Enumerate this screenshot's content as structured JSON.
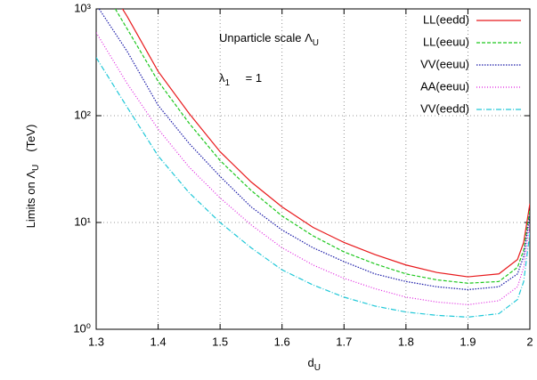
{
  "chart_data": {
    "type": "line",
    "xlabel": {
      "text": "d",
      "sub": "U"
    },
    "ylabel": {
      "text": "Limits on Λ",
      "sub": "U",
      "after": "(TeV)"
    },
    "annotations": [
      {
        "text": "Unparticle scale Λ",
        "sub": "U"
      },
      {
        "text": "λ",
        "sub": "1",
        "after": " = 1"
      }
    ],
    "x": [
      1.3,
      1.35,
      1.4,
      1.45,
      1.5,
      1.55,
      1.6,
      1.65,
      1.7,
      1.75,
      1.8,
      1.85,
      1.9,
      1.95,
      1.98,
      1.99,
      2.0
    ],
    "series": [
      {
        "name": "LL(eedd)",
        "color": "#e8191c",
        "dash": "none",
        "values": [
          2500,
          850,
          260,
          105,
          46,
          24,
          14,
          9,
          6.5,
          5,
          4.0,
          3.4,
          3.1,
          3.3,
          4.5,
          6.5,
          15
        ]
      },
      {
        "name": "LL(eeuu)",
        "color": "#1ec81e",
        "dash": "4,2",
        "values": [
          2000,
          650,
          210,
          85,
          38,
          20,
          11.5,
          7.5,
          5.3,
          4.1,
          3.3,
          2.9,
          2.7,
          2.8,
          3.8,
          5.5,
          13
        ]
      },
      {
        "name": "VV(eeuu)",
        "color": "#1a1aa8",
        "dash": "1.5,1.5",
        "values": [
          1100,
          400,
          125,
          55,
          27,
          14,
          8.5,
          5.8,
          4.3,
          3.3,
          2.8,
          2.5,
          2.35,
          2.5,
          3.3,
          4.8,
          12
        ]
      },
      {
        "name": "AA(eeuu)",
        "color": "#e020e0",
        "dash": "1,2",
        "values": [
          600,
          200,
          75,
          33,
          17,
          9.5,
          5.8,
          4,
          3,
          2.4,
          2.0,
          1.8,
          1.7,
          1.85,
          2.5,
          3.8,
          10
        ]
      },
      {
        "name": "VV(eedd)",
        "color": "#20c8d8",
        "dash": "6,2,1,2",
        "values": [
          350,
          120,
          42,
          19,
          10,
          5.8,
          3.6,
          2.6,
          2.0,
          1.65,
          1.45,
          1.35,
          1.3,
          1.4,
          1.9,
          2.8,
          8
        ]
      }
    ],
    "xlim": [
      1.3,
      2
    ],
    "xticks": [
      1.3,
      1.4,
      1.5,
      1.6,
      1.7,
      1.8,
      1.9,
      2
    ],
    "ylim": [
      1,
      1000
    ],
    "yticks": [
      {
        "value": 1,
        "label": "10⁰"
      },
      {
        "value": 10,
        "label": "10¹"
      },
      {
        "value": 100,
        "label": "10²"
      },
      {
        "value": 1000,
        "label": "10³"
      }
    ],
    "log_y": true,
    "grid": true,
    "legend": "top-right"
  }
}
